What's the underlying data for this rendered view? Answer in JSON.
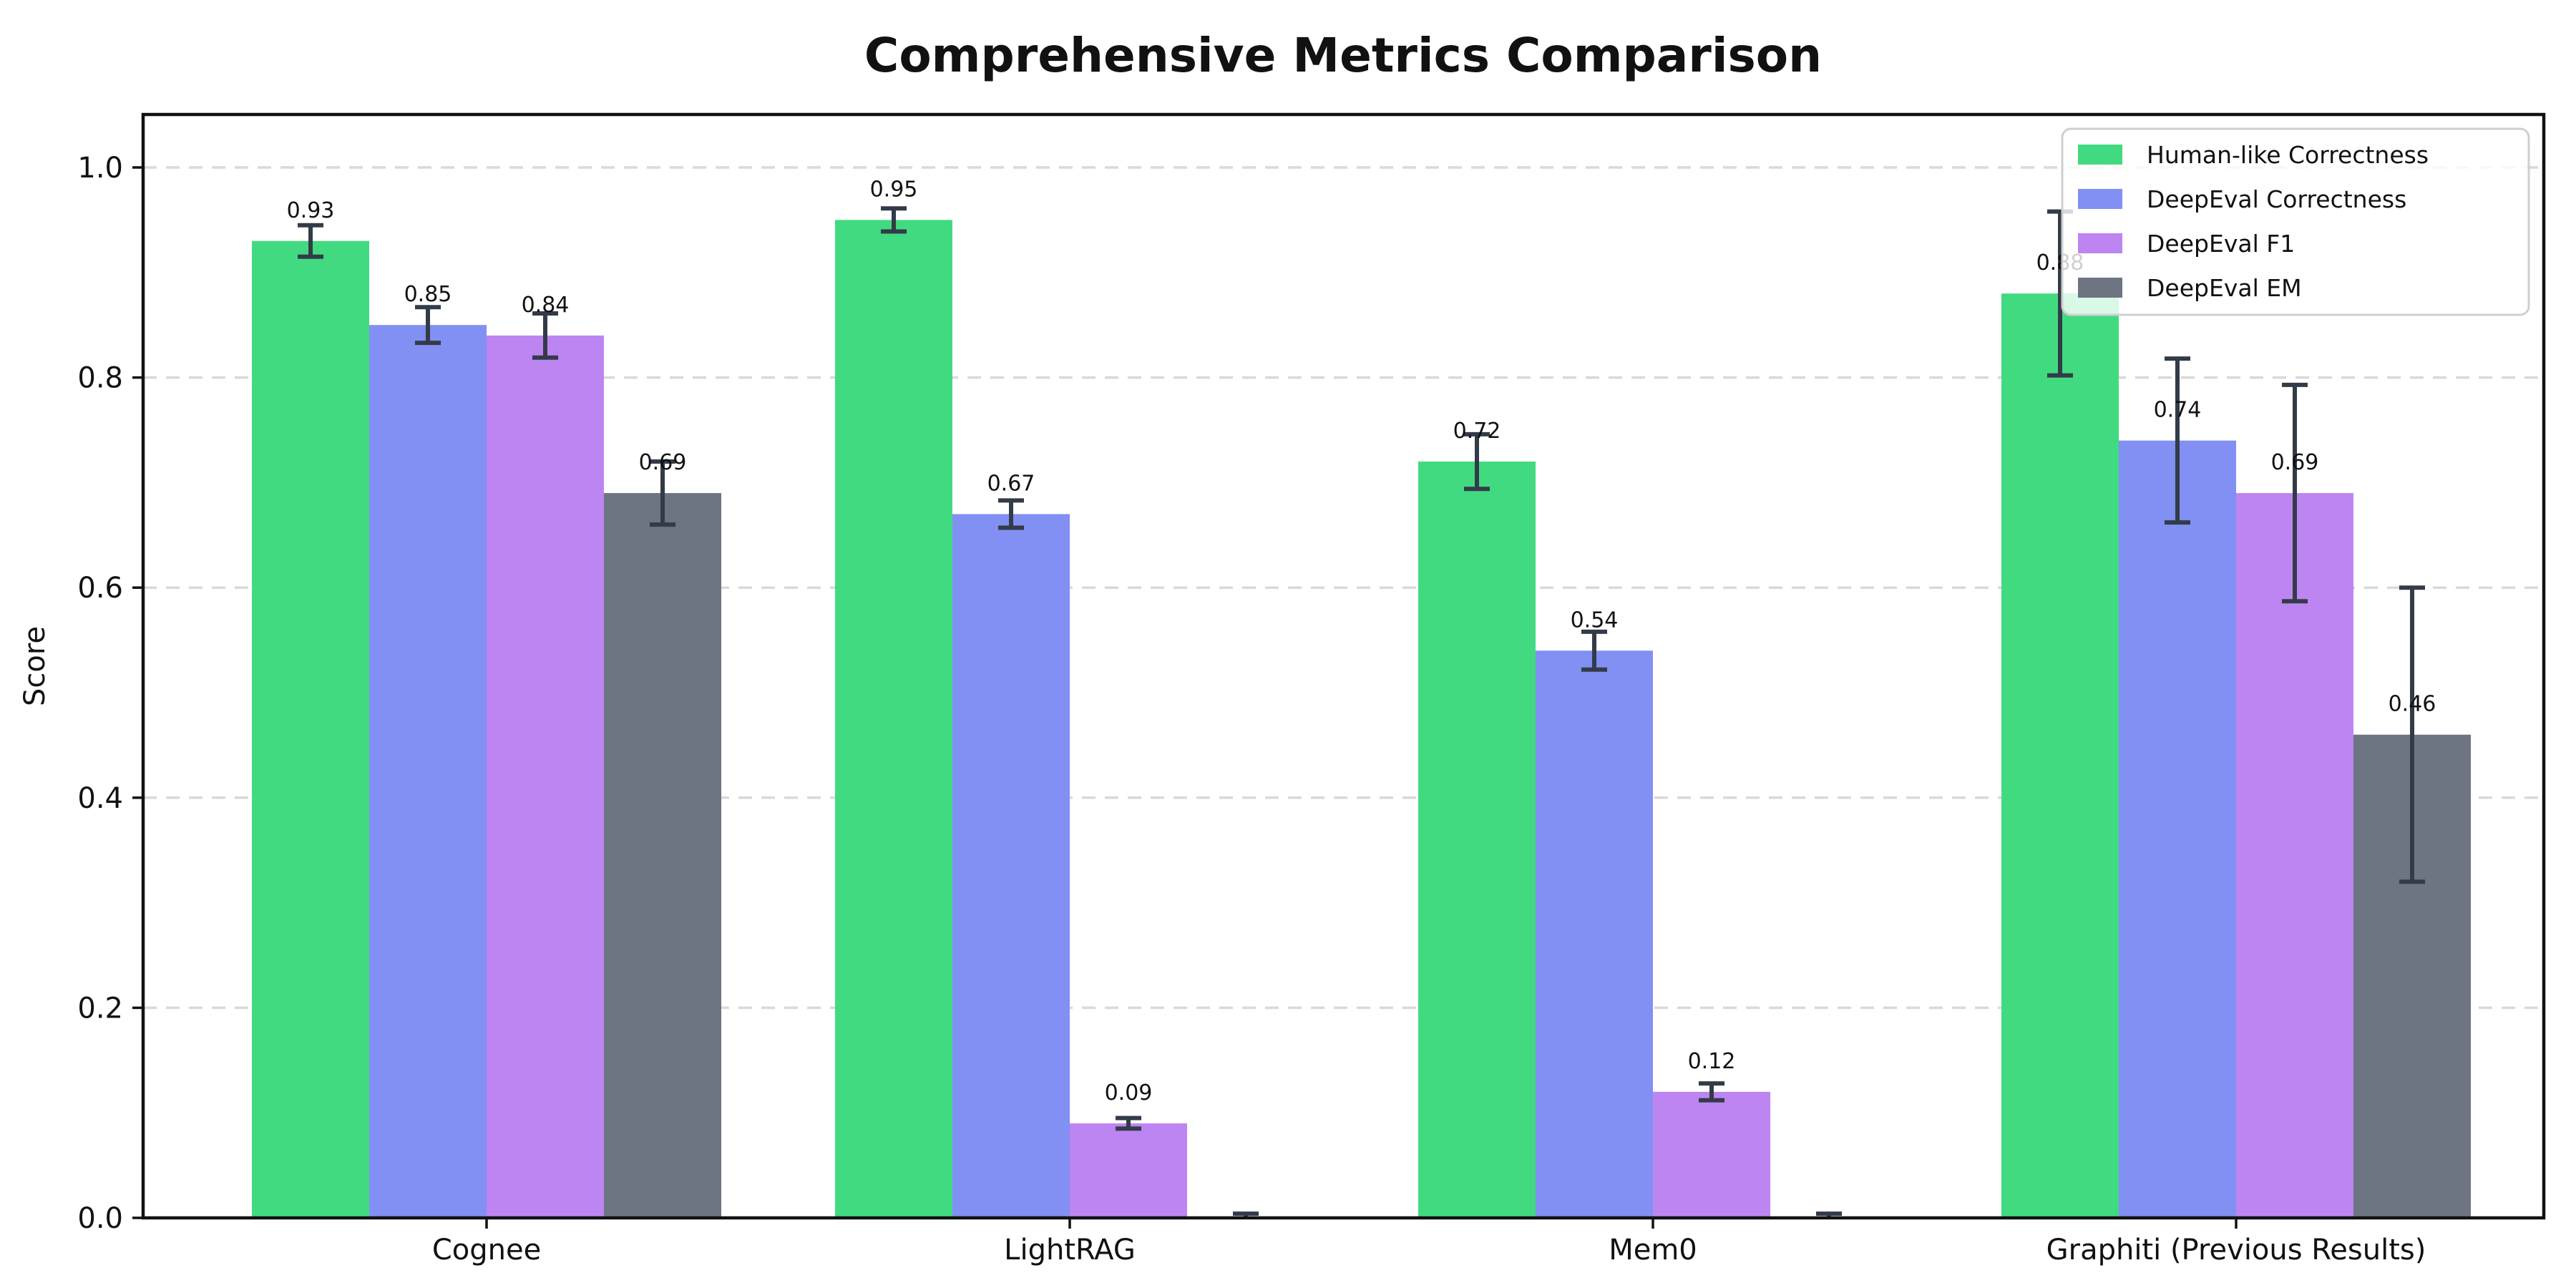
{
  "chart_data": {
    "type": "bar",
    "title": "Comprehensive Metrics Comparison",
    "ylabel": "Score",
    "xlabel": "",
    "categories": [
      "Cognee",
      "LightRAG",
      "Mem0",
      "Graphiti (Previous Results)"
    ],
    "y_ticks": [
      "0.0",
      "0.2",
      "0.4",
      "0.6",
      "0.8",
      "1.0"
    ],
    "ylim": [
      0,
      1.05
    ],
    "grid": "horizontal-dashed",
    "legend_position": "upper right",
    "series": [
      {
        "name": "Human-like Correctness",
        "color": "#42da81",
        "values": [
          0.93,
          0.95,
          0.72,
          0.88
        ],
        "errors": [
          0.015,
          0.011,
          0.026,
          0.078
        ],
        "labels": [
          "0.93",
          "0.95",
          "0.72",
          "0.88"
        ]
      },
      {
        "name": "DeepEval Correctness",
        "color": "#8190f2",
        "values": [
          0.85,
          0.67,
          0.54,
          0.74
        ],
        "errors": [
          0.017,
          0.013,
          0.018,
          0.078
        ],
        "labels": [
          "0.85",
          "0.67",
          "0.54",
          "0.74"
        ]
      },
      {
        "name": "DeepEval F1",
        "color": "#bd85f2",
        "values": [
          0.84,
          0.09,
          0.12,
          0.69
        ],
        "errors": [
          0.021,
          0.005,
          0.008,
          0.103
        ],
        "labels": [
          "0.84",
          "0.09",
          "0.12",
          "0.69"
        ]
      },
      {
        "name": "DeepEval EM",
        "color": "#6d7482",
        "values": [
          0.69,
          0.0,
          0.0,
          0.46
        ],
        "errors": [
          0.03,
          0.004,
          0.004,
          0.14
        ],
        "labels": [
          "0.69",
          null,
          null,
          "0.46"
        ]
      }
    ],
    "error_bar_color": "#333b48",
    "grid_color": "#d9d9d9",
    "spine_color": "#111111",
    "text_color": "#111111",
    "background": "#ffffff"
  }
}
